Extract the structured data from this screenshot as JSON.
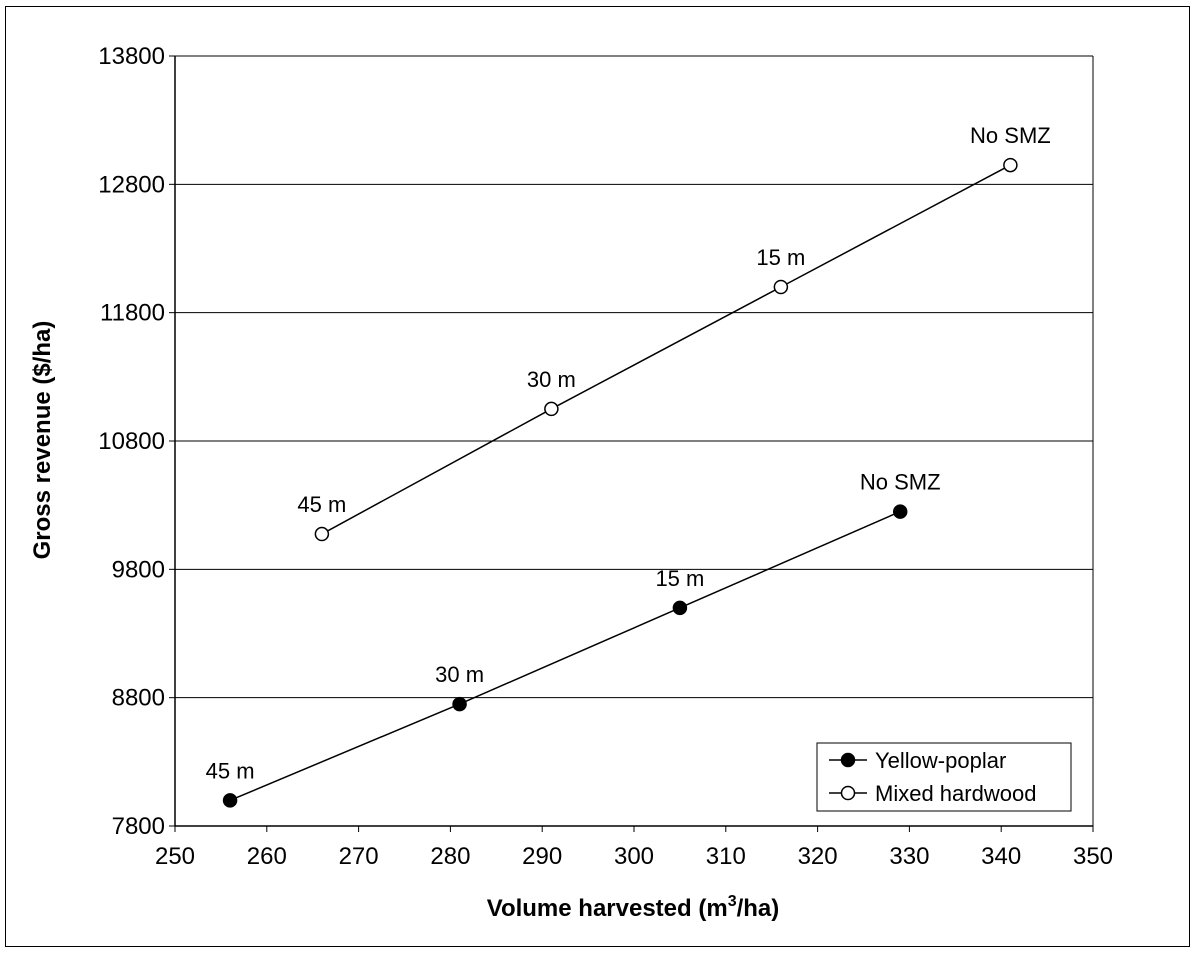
{
  "chart_data": {
    "type": "line",
    "title": "",
    "xlabel": "Volume harvested (m",
    "xlabel_sup": "3",
    "xlabel_tail": "/ha)",
    "ylabel": "Gross revenue ($/ha)",
    "xlim": [
      250,
      350
    ],
    "ylim": [
      7800,
      13800
    ],
    "x_ticks": [
      "250",
      "260",
      "270",
      "280",
      "290",
      "300",
      "310",
      "320",
      "330",
      "340",
      "350"
    ],
    "y_ticks": [
      "7800",
      "8800",
      "9800",
      "10800",
      "11800",
      "12800",
      "13800"
    ],
    "grid": "horizontal",
    "legend_position": "bottom-right",
    "series": [
      {
        "name": "Yellow-poplar",
        "marker": "filled-circle",
        "points": [
          {
            "x": 256,
            "y": 8000,
            "label": "45 m"
          },
          {
            "x": 281,
            "y": 8750,
            "label": "30 m"
          },
          {
            "x": 305,
            "y": 9500,
            "label": "15 m"
          },
          {
            "x": 329,
            "y": 10250,
            "label": "No SMZ"
          }
        ]
      },
      {
        "name": "Mixed hardwood",
        "marker": "open-circle",
        "points": [
          {
            "x": 266,
            "y": 10075,
            "label": "45 m"
          },
          {
            "x": 291,
            "y": 11050,
            "label": "30 m"
          },
          {
            "x": 316,
            "y": 12000,
            "label": "15 m"
          },
          {
            "x": 341,
            "y": 12950,
            "label": "No SMZ"
          }
        ]
      }
    ]
  }
}
